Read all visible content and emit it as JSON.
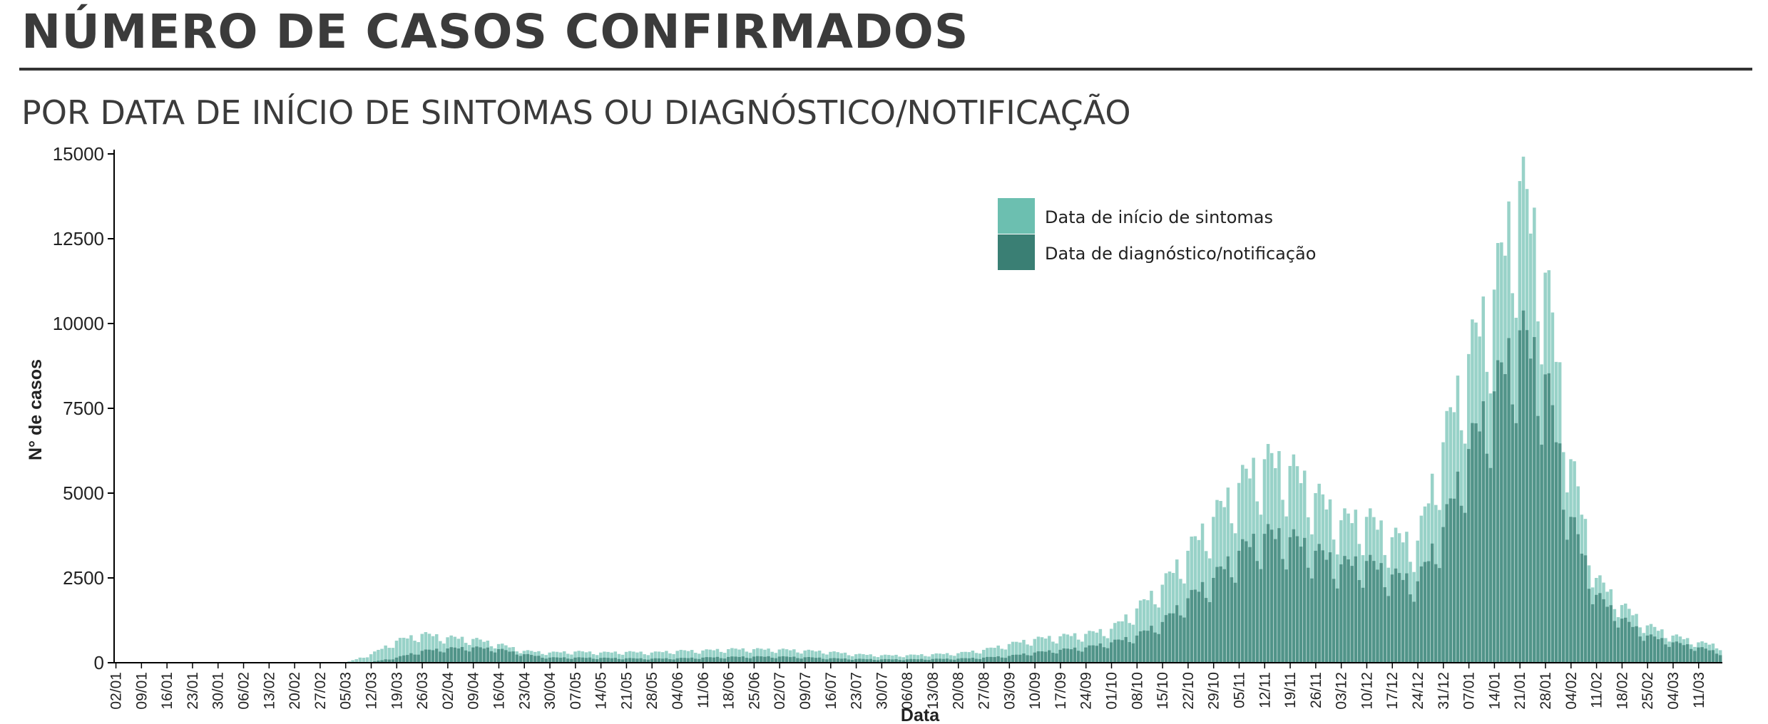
{
  "header": {
    "title": "NÚMERO DE CASOS CONFIRMADOS",
    "subtitle": "POR DATA DE INÍCIO DE SINTOMAS OU DIAGNÓSTICO/NOTIFICAÇÃO"
  },
  "colors": {
    "onset_series": "#6cbfb0",
    "diagnosis_series": "#3a7f74",
    "axis": "#000000"
  },
  "chart_data": {
    "type": "bar",
    "xlabel": "Data",
    "ylabel": "N° de casos",
    "ylim": [
      0,
      15000
    ],
    "yticks": [
      0,
      2500,
      5000,
      7500,
      10000,
      12500,
      15000
    ],
    "ytick_labels": [
      "0",
      "2500",
      "5000",
      "7500",
      "10000",
      "12500",
      "15000"
    ],
    "x_start_date": "2020-01-02",
    "x_end_date": "2021-03-17",
    "x_tick_labels": [
      "02/01",
      "09/01",
      "16/01",
      "23/01",
      "30/01",
      "06/02",
      "13/02",
      "20/02",
      "27/02",
      "05/03",
      "12/03",
      "19/03",
      "26/03",
      "02/04",
      "09/04",
      "16/04",
      "23/04",
      "30/04",
      "07/05",
      "14/05",
      "21/05",
      "28/05",
      "04/06",
      "11/06",
      "18/06",
      "25/06",
      "02/07",
      "09/07",
      "16/07",
      "23/07",
      "30/07",
      "06/08",
      "13/08",
      "20/08",
      "27/08",
      "03/09",
      "10/09",
      "17/09",
      "24/09",
      "01/10",
      "08/10",
      "15/10",
      "22/10",
      "29/10",
      "05/11",
      "12/11",
      "19/11",
      "26/11",
      "03/12",
      "10/12",
      "17/12",
      "24/12",
      "31/12",
      "07/01",
      "14/01",
      "21/01",
      "28/01",
      "04/02",
      "11/02",
      "18/02",
      "25/02",
      "04/03",
      "11/03"
    ],
    "legend_position": "top-center",
    "grid": false,
    "series": [
      {
        "name": "Data de início de sintomas",
        "color": "#6cbfb0",
        "points": [
          [
            "2020-03-05",
            0
          ],
          [
            "2020-03-12",
            250
          ],
          [
            "2020-03-19",
            650
          ],
          [
            "2020-03-26",
            850
          ],
          [
            "2020-04-02",
            750
          ],
          [
            "2020-04-09",
            700
          ],
          [
            "2020-04-16",
            550
          ],
          [
            "2020-04-23",
            350
          ],
          [
            "2020-04-30",
            300
          ],
          [
            "2020-05-07",
            330
          ],
          [
            "2020-05-14",
            300
          ],
          [
            "2020-05-21",
            320
          ],
          [
            "2020-05-28",
            300
          ],
          [
            "2020-06-04",
            350
          ],
          [
            "2020-06-11",
            360
          ],
          [
            "2020-06-18",
            400
          ],
          [
            "2020-06-25",
            400
          ],
          [
            "2020-07-02",
            390
          ],
          [
            "2020-07-09",
            360
          ],
          [
            "2020-07-16",
            320
          ],
          [
            "2020-07-23",
            250
          ],
          [
            "2020-07-30",
            220
          ],
          [
            "2020-08-06",
            220
          ],
          [
            "2020-08-13",
            250
          ],
          [
            "2020-08-20",
            280
          ],
          [
            "2020-08-27",
            380
          ],
          [
            "2020-09-03",
            550
          ],
          [
            "2020-09-10",
            700
          ],
          [
            "2020-09-17",
            780
          ],
          [
            "2020-09-24",
            850
          ],
          [
            "2020-10-01",
            1000
          ],
          [
            "2020-10-08",
            1600
          ],
          [
            "2020-10-15",
            2300
          ],
          [
            "2020-10-22",
            3300
          ],
          [
            "2020-10-29",
            4300
          ],
          [
            "2020-11-05",
            5300
          ],
          [
            "2020-11-12",
            6000
          ],
          [
            "2020-11-19",
            5800
          ],
          [
            "2020-11-26",
            5000
          ],
          [
            "2020-12-03",
            4200
          ],
          [
            "2020-12-10",
            4300
          ],
          [
            "2020-12-17",
            3700
          ],
          [
            "2020-12-24",
            3600
          ],
          [
            "2020-12-31",
            6500
          ],
          [
            "2021-01-07",
            9100
          ],
          [
            "2021-01-14",
            11000
          ],
          [
            "2021-01-21",
            14200
          ],
          [
            "2021-01-28",
            11500
          ],
          [
            "2021-02-04",
            6000
          ],
          [
            "2021-02-11",
            2500
          ],
          [
            "2021-02-18",
            1700
          ],
          [
            "2021-02-25",
            1100
          ],
          [
            "2021-03-04",
            800
          ],
          [
            "2021-03-11",
            600
          ],
          [
            "2021-03-17",
            500
          ]
        ]
      },
      {
        "name": "Data de diagnóstico/notificação",
        "color": "#3a7f74",
        "points": [
          [
            "2020-03-05",
            0
          ],
          [
            "2020-03-12",
            20
          ],
          [
            "2020-03-19",
            150
          ],
          [
            "2020-03-26",
            350
          ],
          [
            "2020-04-02",
            420
          ],
          [
            "2020-04-09",
            450
          ],
          [
            "2020-04-16",
            400
          ],
          [
            "2020-04-23",
            250
          ],
          [
            "2020-04-30",
            150
          ],
          [
            "2020-05-07",
            150
          ],
          [
            "2020-05-14",
            140
          ],
          [
            "2020-05-21",
            130
          ],
          [
            "2020-05-28",
            120
          ],
          [
            "2020-06-04",
            130
          ],
          [
            "2020-06-11",
            150
          ],
          [
            "2020-06-18",
            170
          ],
          [
            "2020-06-25",
            180
          ],
          [
            "2020-07-02",
            180
          ],
          [
            "2020-07-09",
            160
          ],
          [
            "2020-07-16",
            130
          ],
          [
            "2020-07-23",
            110
          ],
          [
            "2020-07-30",
            100
          ],
          [
            "2020-08-06",
            100
          ],
          [
            "2020-08-13",
            110
          ],
          [
            "2020-08-20",
            120
          ],
          [
            "2020-08-27",
            150
          ],
          [
            "2020-09-03",
            200
          ],
          [
            "2020-09-10",
            300
          ],
          [
            "2020-09-17",
            380
          ],
          [
            "2020-09-24",
            450
          ],
          [
            "2020-10-01",
            600
          ],
          [
            "2020-10-08",
            800
          ],
          [
            "2020-10-15",
            1200
          ],
          [
            "2020-10-22",
            1900
          ],
          [
            "2020-10-29",
            2500
          ],
          [
            "2020-11-05",
            3300
          ],
          [
            "2020-11-12",
            3800
          ],
          [
            "2020-11-19",
            3700
          ],
          [
            "2020-11-26",
            3300
          ],
          [
            "2020-12-03",
            2900
          ],
          [
            "2020-12-10",
            3000
          ],
          [
            "2020-12-17",
            2600
          ],
          [
            "2020-12-24",
            2400
          ],
          [
            "2020-12-31",
            4000
          ],
          [
            "2021-01-07",
            6300
          ],
          [
            "2021-01-14",
            8000
          ],
          [
            "2021-01-21",
            9800
          ],
          [
            "2021-01-28",
            8500
          ],
          [
            "2021-02-04",
            4300
          ],
          [
            "2021-02-11",
            2000
          ],
          [
            "2021-02-18",
            1300
          ],
          [
            "2021-02-25",
            800
          ],
          [
            "2021-03-04",
            600
          ],
          [
            "2021-03-11",
            450
          ],
          [
            "2021-03-17",
            300
          ]
        ]
      }
    ]
  }
}
